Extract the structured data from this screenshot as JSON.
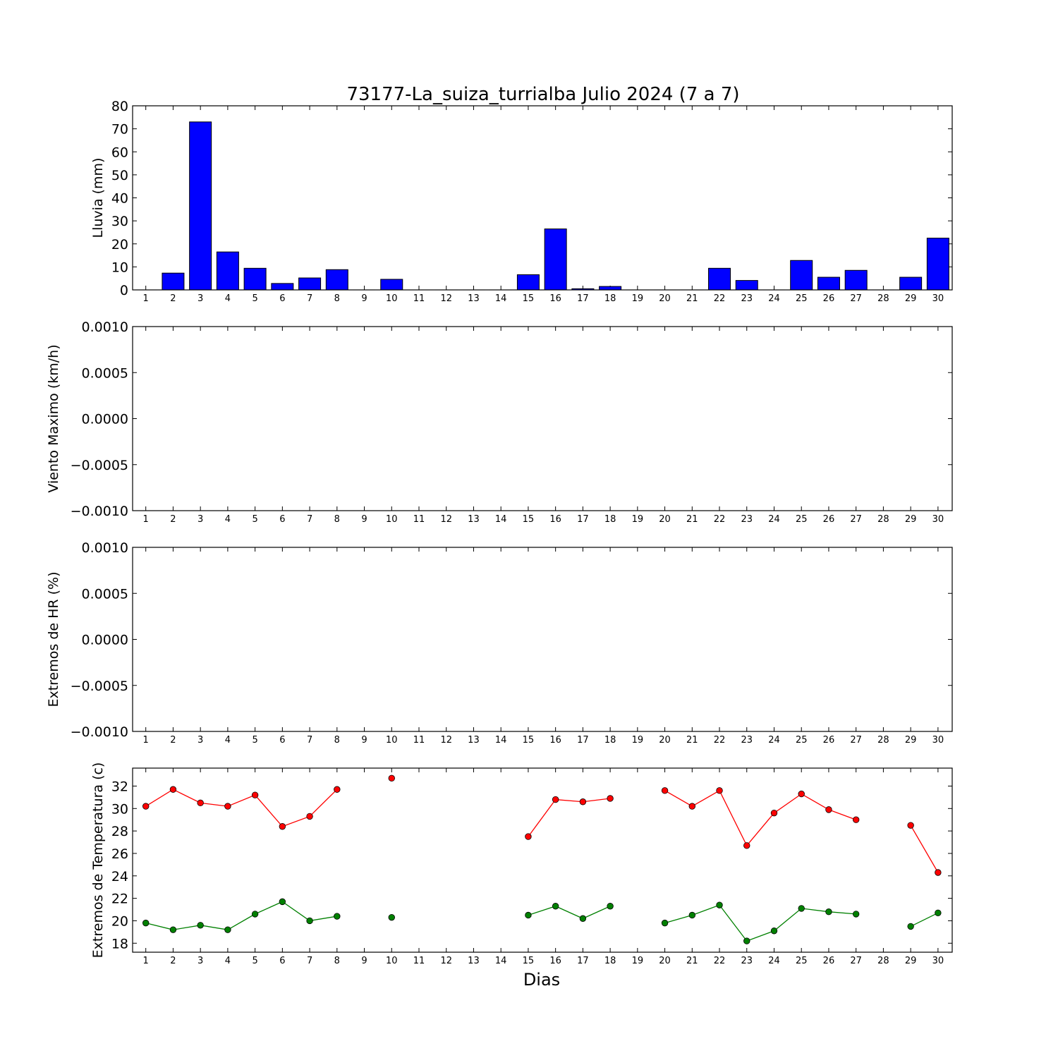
{
  "figure": {
    "title": "73177-La_suiza_turrialba Julio 2024  (7 a 7)",
    "xlabel": "Dias",
    "colors": {
      "bars": "#0000ff",
      "tmax": "#ff0000",
      "tmin": "#008000"
    }
  },
  "chart_data": [
    {
      "type": "bar",
      "ylabel": "Lluvia (mm)",
      "ylim": [
        0,
        80
      ],
      "yticks": [
        "0",
        "10",
        "20",
        "30",
        "40",
        "50",
        "60",
        "70",
        "80"
      ],
      "categories": [
        1,
        2,
        3,
        4,
        5,
        6,
        7,
        8,
        9,
        10,
        11,
        12,
        13,
        14,
        15,
        16,
        17,
        18,
        19,
        20,
        21,
        22,
        23,
        24,
        25,
        26,
        27,
        28,
        29,
        30
      ],
      "values": [
        0,
        7.3,
        73,
        16.5,
        9.4,
        2.8,
        5.2,
        8.8,
        0,
        4.6,
        0,
        0,
        0,
        0,
        6.6,
        26.5,
        0.5,
        1.5,
        0,
        0,
        0,
        9.4,
        4.1,
        0,
        12.8,
        5.5,
        8.5,
        0,
        5.5,
        22.5
      ]
    },
    {
      "type": "line",
      "ylabel": "Viento Maximo (km/h)",
      "ylim": [
        -0.001,
        0.001
      ],
      "yticks": [
        "0.0010",
        "0.0005",
        "0.0000",
        "−0.0005",
        "−0.0010"
      ],
      "categories": [
        1,
        2,
        3,
        4,
        5,
        6,
        7,
        8,
        9,
        10,
        11,
        12,
        13,
        14,
        15,
        16,
        17,
        18,
        19,
        20,
        21,
        22,
        23,
        24,
        25,
        26,
        27,
        28,
        29,
        30
      ],
      "series": []
    },
    {
      "type": "line",
      "ylabel": "Extremos de HR (%)",
      "ylim": [
        -0.001,
        0.001
      ],
      "yticks": [
        "0.0010",
        "0.0005",
        "0.0000",
        "−0.0005",
        "−0.0010"
      ],
      "categories": [
        1,
        2,
        3,
        4,
        5,
        6,
        7,
        8,
        9,
        10,
        11,
        12,
        13,
        14,
        15,
        16,
        17,
        18,
        19,
        20,
        21,
        22,
        23,
        24,
        25,
        26,
        27,
        28,
        29,
        30
      ],
      "series": []
    },
    {
      "type": "line",
      "ylabel": "Extremos de Temperatura (c)",
      "ylim": [
        17.2,
        33.6
      ],
      "yticks": [
        "18",
        "20",
        "22",
        "24",
        "26",
        "28",
        "30",
        "32"
      ],
      "categories": [
        1,
        2,
        3,
        4,
        5,
        6,
        7,
        8,
        9,
        10,
        11,
        12,
        13,
        14,
        15,
        16,
        17,
        18,
        19,
        20,
        21,
        22,
        23,
        24,
        25,
        26,
        27,
        28,
        29,
        30
      ],
      "series": [
        {
          "color": "#ff0000",
          "values": [
            30.2,
            31.7,
            30.5,
            30.2,
            31.2,
            28.4,
            29.3,
            31.7,
            null,
            32.7,
            null,
            null,
            null,
            null,
            27.5,
            30.8,
            30.6,
            30.9,
            null,
            31.6,
            30.2,
            31.6,
            26.7,
            29.6,
            31.3,
            29.9,
            29.0,
            null,
            28.5,
            24.3
          ]
        },
        {
          "color": "#008000",
          "values": [
            19.8,
            19.2,
            19.6,
            19.2,
            20.6,
            21.7,
            20.0,
            20.4,
            null,
            20.3,
            null,
            null,
            null,
            null,
            20.5,
            21.3,
            20.2,
            21.3,
            null,
            19.8,
            20.5,
            21.4,
            18.2,
            19.1,
            21.1,
            20.8,
            20.6,
            null,
            19.5,
            20.7
          ]
        }
      ]
    }
  ]
}
